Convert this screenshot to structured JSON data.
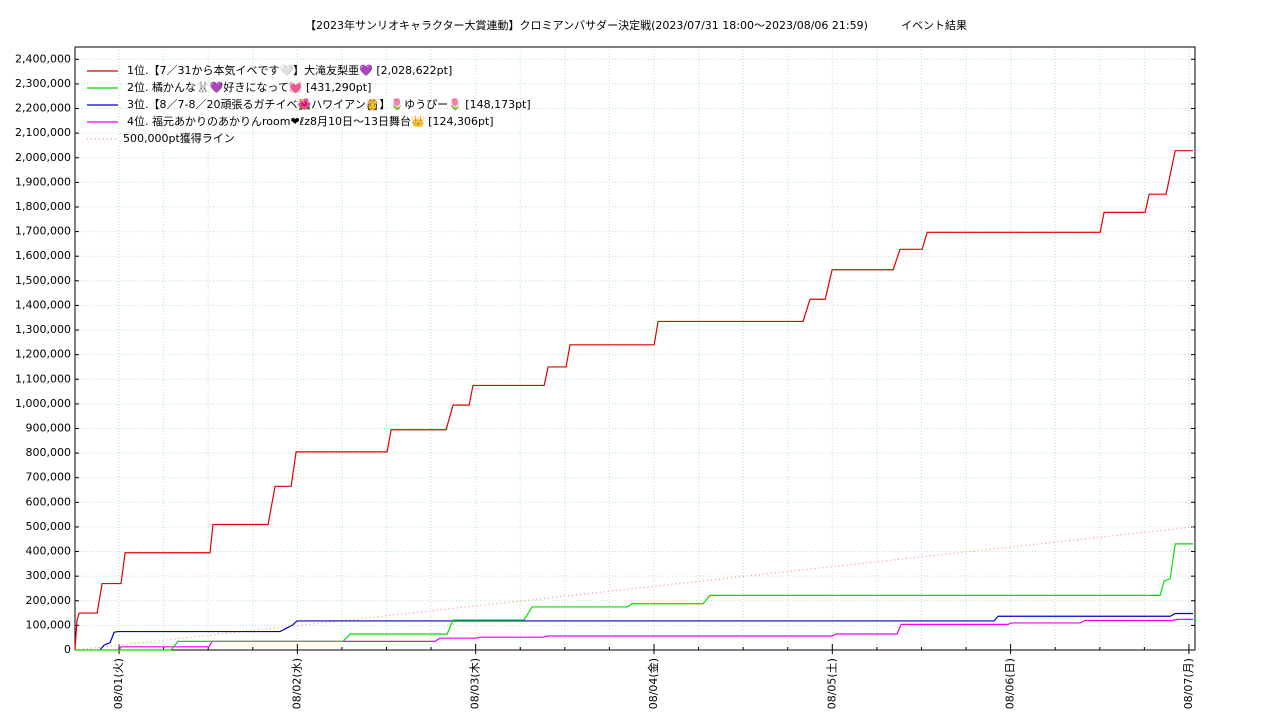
{
  "chart_data": {
    "type": "line",
    "title": "【2023年サンリオキャラクター大賞連動】クロミアンバサダー決定戦(2023/07/31 18:00～2023/08/06 21:59)",
    "subtitle": "イベント結果",
    "xlim": [
      0.753,
      7.034
    ],
    "ylim": [
      0,
      2450000
    ],
    "xticks": [
      {
        "value": 1,
        "label": "08/01(火)"
      },
      {
        "value": 2,
        "label": "08/02(水)"
      },
      {
        "value": 3,
        "label": "08/03(木)"
      },
      {
        "value": 4,
        "label": "08/04(金)"
      },
      {
        "value": 5,
        "label": "08/05(土)"
      },
      {
        "value": 6,
        "label": "08/06(日)"
      },
      {
        "value": 7,
        "label": "08/07(月)"
      }
    ],
    "x_minor_ticks": [
      1.25,
      1.5,
      1.75,
      2.25,
      2.5,
      2.75,
      3.25,
      3.5,
      3.75,
      4.25,
      4.5,
      4.75,
      5.25,
      5.5,
      5.75,
      6.25,
      6.5,
      6.75
    ],
    "yticks": [
      0,
      {
        "value": 100000,
        "label": "100,000"
      },
      {
        "value": 200000,
        "label": "200,000"
      },
      {
        "value": 300000,
        "label": "300,000"
      },
      {
        "value": 400000,
        "label": "400,000"
      },
      {
        "value": 500000,
        "label": "500,000"
      },
      {
        "value": 600000,
        "label": "600,000"
      },
      {
        "value": 700000,
        "label": "700,000"
      },
      {
        "value": 800000,
        "label": "800,000"
      },
      {
        "value": 900000,
        "label": "900,000"
      },
      {
        "value": 1000000,
        "label": "1,000,000"
      },
      {
        "value": 1100000,
        "label": "1,100,000"
      },
      {
        "value": 1200000,
        "label": "1,200,000"
      },
      {
        "value": 1300000,
        "label": "1,300,000"
      },
      {
        "value": 1400000,
        "label": "1,400,000"
      },
      {
        "value": 1500000,
        "label": "1,500,000"
      },
      {
        "value": 1600000,
        "label": "1,600,000"
      },
      {
        "value": 1700000,
        "label": "1,700,000"
      },
      {
        "value": 1800000,
        "label": "1,800,000"
      },
      {
        "value": 1900000,
        "label": "1,900,000"
      },
      {
        "value": 2000000,
        "label": "2,000,000"
      },
      {
        "value": 2100000,
        "label": "2,100,000"
      },
      {
        "value": 2200000,
        "label": "2,200,000"
      },
      {
        "value": 2300000,
        "label": "2,300,000"
      },
      {
        "value": 2400000,
        "label": "2,400,000"
      }
    ],
    "grid": true,
    "legend": "upper left",
    "series": [
      {
        "name": "1位.【7／31から本気イベです🤍】大滝友梨亜💜 [2,028,622pt]",
        "color": "#e00000",
        "style": "solid",
        "x": [
          0.753,
          0.764,
          0.776,
          0.877,
          0.905,
          1.011,
          1.034,
          1.51,
          1.527,
          1.836,
          1.875,
          1.965,
          1.993,
          2.503,
          2.526,
          2.834,
          2.873,
          2.963,
          2.985,
          3.384,
          3.406,
          3.507,
          3.529,
          4.001,
          4.023,
          4.836,
          4.875,
          4.96,
          4.999,
          5.341,
          5.38,
          5.504,
          5.532,
          6.502,
          6.524,
          6.754,
          6.777,
          6.872,
          6.923,
          7.023
        ],
        "values": [
          0,
          120000,
          150000,
          150000,
          270000,
          270000,
          395000,
          395000,
          510000,
          510000,
          665000,
          665000,
          805000,
          805000,
          895000,
          895000,
          995000,
          995000,
          1075000,
          1075000,
          1150000,
          1150000,
          1240000,
          1240000,
          1335000,
          1335000,
          1425000,
          1425000,
          1545000,
          1545000,
          1628000,
          1628000,
          1697000,
          1697000,
          1778000,
          1778000,
          1852000,
          1852000,
          2028622,
          2028622
        ]
      },
      {
        "name": "2位. 橘かんな🐰💜好きになって💓 [431,290pt]",
        "color": "#00dd00",
        "style": "solid",
        "x": [
          0.753,
          1.292,
          1.331,
          2.256,
          2.296,
          2.84,
          2.873,
          3.271,
          3.316,
          3.849,
          3.877,
          4.275,
          4.314,
          6.838,
          6.861,
          6.895,
          6.923,
          7.023
        ],
        "values": [
          0,
          0,
          35000,
          35000,
          65000,
          65000,
          122000,
          122000,
          175000,
          175000,
          188000,
          188000,
          222000,
          222000,
          280000,
          290000,
          431290,
          431290
        ]
      },
      {
        "name": "3位.【8／7-8／20頑張るガチイベ🌺ハワイアン👸】🌷ゆうぴー🌷 [148,173pt]",
        "color": "#0000cc",
        "style": "solid",
        "x": [
          0.893,
          0.916,
          0.95,
          0.972,
          0.994,
          1.903,
          1.97,
          1.998,
          5.907,
          5.93,
          6.895,
          6.923,
          7.023
        ],
        "values": [
          0,
          20000,
          30000,
          72000,
          75000,
          75000,
          100000,
          118000,
          118000,
          137000,
          137000,
          148173,
          148173
        ]
      },
      {
        "name": "4位. 福元あかりのあかりんroom❤︎ℓz8月10日〜13日舞台👑 [124,306pt]",
        "color": "#ee00ee",
        "style": "solid",
        "x": [
          1.0,
          1.011,
          1.505,
          1.522,
          2.772,
          2.8,
          2.997,
          3.025,
          3.378,
          3.406,
          4.999,
          5.021,
          5.363,
          5.386,
          5.986,
          6.003,
          6.39,
          6.418,
          6.906,
          6.934,
          7.023
        ],
        "values": [
          0,
          13000,
          13000,
          35000,
          35000,
          48000,
          48000,
          52000,
          52000,
          57000,
          57000,
          65000,
          65000,
          104000,
          104000,
          110000,
          110000,
          120000,
          120000,
          124306,
          124306
        ]
      },
      {
        "name": "500,000pt獲得ライン",
        "color": "#ff9090",
        "style": "dotted",
        "x": [
          0.753,
          7.023
        ],
        "values": [
          0,
          500000
        ]
      }
    ]
  }
}
